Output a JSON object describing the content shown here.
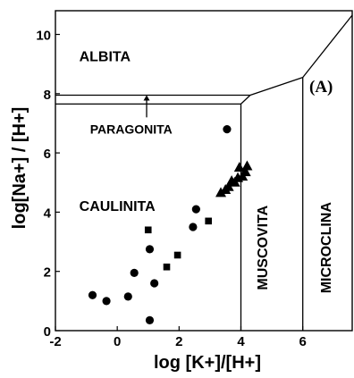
{
  "chart_data": {
    "type": "scatter",
    "panel_label": "(A)",
    "xlabel": "log [K+]/[H+]",
    "ylabel": "log[Na+] / [H+]",
    "xlim": [
      -2,
      7.6
    ],
    "ylim": [
      0,
      10.8
    ],
    "x_ticks": [
      {
        "value": -2,
        "label": "-2"
      },
      {
        "value": 0,
        "label": "0"
      },
      {
        "value": 2,
        "label": "2"
      },
      {
        "value": 4,
        "label": "4"
      },
      {
        "value": 6,
        "label": "6"
      }
    ],
    "y_ticks": [
      {
        "value": 0,
        "label": "0"
      },
      {
        "value": 2,
        "label": "2"
      },
      {
        "value": 4,
        "label": "4"
      },
      {
        "value": 6,
        "label": "6"
      },
      {
        "value": 8,
        "label": "8"
      },
      {
        "value": 10,
        "label": "10"
      }
    ],
    "regions": [
      {
        "name": "ALBITA",
        "x": -0.4,
        "y": 9.1
      },
      {
        "name": "PARAGONITA",
        "x": 0.45,
        "y": 6.65
      },
      {
        "name": "CAULINITA",
        "x": 0.0,
        "y": 4.05
      },
      {
        "name": "MUSCOVITA",
        "x": 4.85,
        "y": 2.8,
        "vertical": true
      },
      {
        "name": "MICROCLINA",
        "x": 6.9,
        "y": 2.8,
        "vertical": true
      }
    ],
    "boundaries": [
      {
        "name": "albita-upper",
        "points": [
          [
            -2,
            7.95
          ],
          [
            4.3,
            7.95
          ]
        ]
      },
      {
        "name": "paragonita-lower",
        "points": [
          [
            -2,
            7.65
          ],
          [
            4.0,
            7.65
          ],
          [
            4.3,
            7.95
          ]
        ]
      },
      {
        "name": "kaolinite-muscovite",
        "points": [
          [
            4.0,
            7.65
          ],
          [
            4.0,
            0
          ]
        ]
      },
      {
        "name": "albite-muscovite",
        "points": [
          [
            4.3,
            7.95
          ],
          [
            6.0,
            8.55
          ]
        ]
      },
      {
        "name": "muscovite-microcline",
        "points": [
          [
            6.0,
            8.55
          ],
          [
            6.0,
            0
          ]
        ]
      },
      {
        "name": "albite-microcline",
        "points": [
          [
            6.0,
            8.55
          ],
          [
            7.6,
            10.65
          ]
        ]
      }
    ],
    "arrow": {
      "from": [
        0.95,
        7.2
      ],
      "to": [
        0.95,
        7.95
      ]
    },
    "series": [
      {
        "marker": "circle",
        "points": [
          [
            -0.8,
            1.2
          ],
          [
            -0.35,
            1.0
          ],
          [
            0.35,
            1.15
          ],
          [
            0.55,
            1.95
          ],
          [
            1.05,
            2.75
          ],
          [
            1.2,
            1.6
          ],
          [
            1.05,
            0.35
          ],
          [
            2.45,
            3.5
          ],
          [
            2.55,
            4.1
          ],
          [
            3.55,
            6.8
          ]
        ]
      },
      {
        "marker": "square",
        "points": [
          [
            1.0,
            3.4
          ],
          [
            1.6,
            2.15
          ],
          [
            1.95,
            2.55
          ],
          [
            2.95,
            3.7
          ]
        ]
      },
      {
        "marker": "triangle",
        "points": [
          [
            3.35,
            4.65
          ],
          [
            3.5,
            4.75
          ],
          [
            3.6,
            4.85
          ],
          [
            3.7,
            5.05
          ],
          [
            3.8,
            5.0
          ],
          [
            3.9,
            5.15
          ],
          [
            3.95,
            5.5
          ],
          [
            4.05,
            5.2
          ],
          [
            4.15,
            5.35
          ],
          [
            4.2,
            5.55
          ]
        ]
      }
    ]
  }
}
